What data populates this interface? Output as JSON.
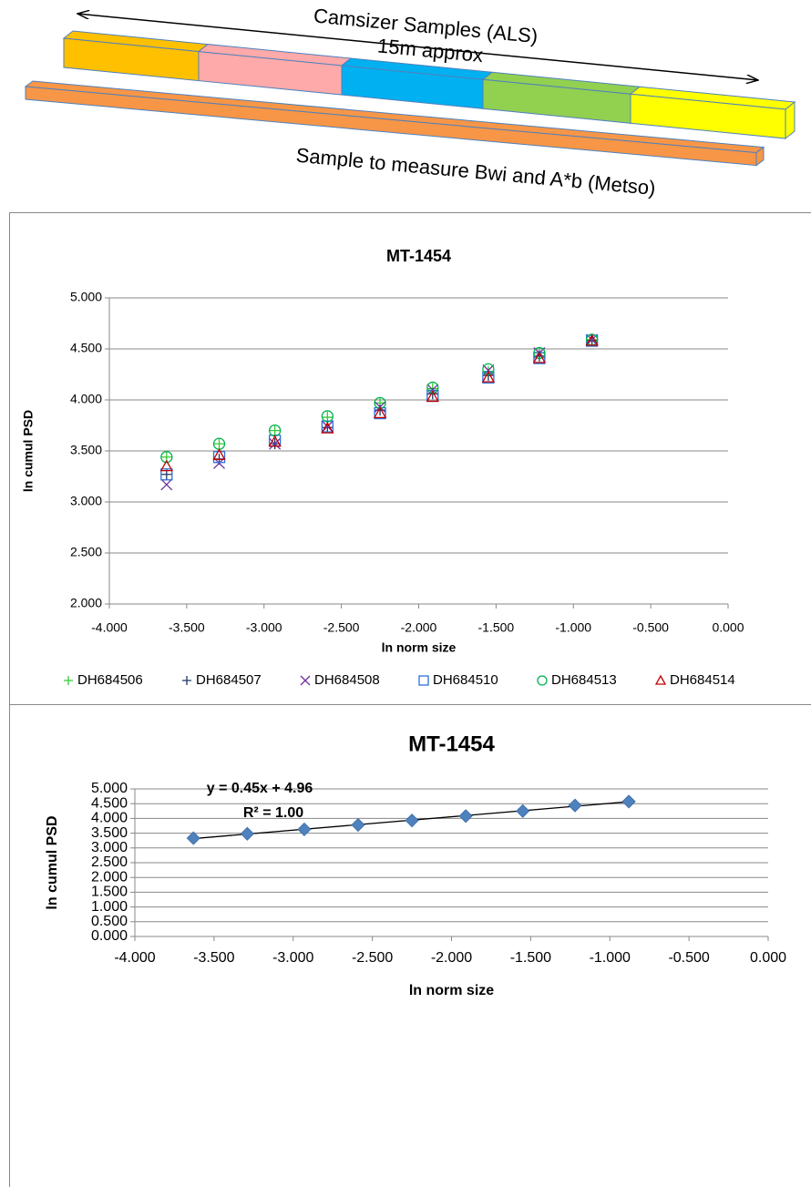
{
  "diagram": {
    "title": "Camsizer Samples (ALS)",
    "length": "15m approx",
    "caption": "Sample to measure Bwi and A*b (Metso)"
  },
  "chart_data": [
    {
      "type": "scatter",
      "title": "MT-1454",
      "x_label": "ln norm size",
      "y_label": "ln cumul PSD",
      "x": [
        -3.63,
        -3.29,
        -2.93,
        -2.59,
        -2.25,
        -1.91,
        -1.55,
        -1.22,
        -0.88
      ],
      "series": [
        {
          "name": "DH684506",
          "color": "#33cc33",
          "marker": "plus",
          "values": [
            3.44,
            3.57,
            3.7,
            3.83,
            3.97,
            4.11,
            4.28,
            4.46,
            4.59
          ]
        },
        {
          "name": "DH684507",
          "color": "#1f3864",
          "marker": "plus",
          "values": [
            3.27,
            3.42,
            3.57,
            3.73,
            3.9,
            4.06,
            4.24,
            4.43,
            4.58
          ]
        },
        {
          "name": "DH684508",
          "color": "#7030a0",
          "marker": "x",
          "values": [
            3.17,
            3.38,
            3.57,
            3.74,
            3.93,
            4.1,
            4.29,
            4.46,
            4.59
          ]
        },
        {
          "name": "DH684510",
          "color": "#2f6fd6",
          "marker": "square",
          "values": [
            3.27,
            3.44,
            3.6,
            3.74,
            3.87,
            4.04,
            4.22,
            4.41,
            4.58
          ]
        },
        {
          "name": "DH684513",
          "color": "#00b050",
          "marker": "circle",
          "values": [
            3.44,
            3.57,
            3.7,
            3.84,
            3.97,
            4.12,
            4.3,
            4.46,
            4.59
          ]
        },
        {
          "name": "DH684514",
          "color": "#c00000",
          "marker": "triangle",
          "values": [
            3.35,
            3.46,
            3.59,
            3.72,
            3.87,
            4.03,
            4.22,
            4.41,
            4.58
          ]
        }
      ],
      "xlim": [
        -4,
        0
      ],
      "xticks": [
        {
          "value": -4,
          "label": "-4.000"
        },
        {
          "value": -3.5,
          "label": "-3.500"
        },
        {
          "value": -3,
          "label": "-3.000"
        },
        {
          "value": -2.5,
          "label": "-2.500"
        },
        {
          "value": -2,
          "label": "-2.000"
        },
        {
          "value": -1.5,
          "label": "-1.500"
        },
        {
          "value": -1,
          "label": "-1.000"
        },
        {
          "value": -0.5,
          "label": "-0.500"
        },
        {
          "value": 0,
          "label": "0.000"
        }
      ],
      "ylim": [
        2,
        5
      ],
      "yticks": [
        {
          "value": 2,
          "label": "2.000"
        },
        {
          "value": 2.5,
          "label": "2.500"
        },
        {
          "value": 3,
          "label": "3.000"
        },
        {
          "value": 3.5,
          "label": "3.500"
        },
        {
          "value": 4,
          "label": "4.000"
        },
        {
          "value": 4.5,
          "label": "4.500"
        },
        {
          "value": 5,
          "label": "5.000"
        }
      ],
      "grid": true,
      "legend": "bottom"
    },
    {
      "type": "scatter",
      "title": "MT-1454",
      "x_label": "ln norm size",
      "y_label": "ln cumul PSD",
      "x": [
        -3.63,
        -3.29,
        -2.93,
        -2.59,
        -2.25,
        -1.91,
        -1.55,
        -1.22,
        -0.88
      ],
      "series": [
        {
          "color": "#4f81bd",
          "marker": "diamond",
          "values": [
            3.33,
            3.48,
            3.63,
            3.78,
            3.93,
            4.08,
            4.25,
            4.44,
            4.57
          ]
        }
      ],
      "annotations": [
        "y = 0.45x + 4.96",
        "R² = 1.00"
      ],
      "trendline": true,
      "xlim": [
        -4,
        0
      ],
      "xticks": [
        {
          "value": -4,
          "label": "-4.000"
        },
        {
          "value": -3.5,
          "label": "-3.500"
        },
        {
          "value": -3,
          "label": "-3.000"
        },
        {
          "value": -2.5,
          "label": "-2.500"
        },
        {
          "value": -2,
          "label": "-2.000"
        },
        {
          "value": -1.5,
          "label": "-1.500"
        },
        {
          "value": -1,
          "label": "-1.000"
        },
        {
          "value": -0.5,
          "label": "-0.500"
        },
        {
          "value": 0,
          "label": "0.000"
        }
      ],
      "ylim": [
        0,
        5
      ],
      "yticks": [
        {
          "value": 0,
          "label": "0.000"
        },
        {
          "value": 0.5,
          "label": "0.500"
        },
        {
          "value": 1,
          "label": "1.000"
        },
        {
          "value": 1.5,
          "label": "1.500"
        },
        {
          "value": 2,
          "label": "2.000"
        },
        {
          "value": 2.5,
          "label": "2.500"
        },
        {
          "value": 3,
          "label": "3.000"
        },
        {
          "value": 3.5,
          "label": "3.500"
        },
        {
          "value": 4,
          "label": "4.000"
        },
        {
          "value": 4.5,
          "label": "4.500"
        },
        {
          "value": 5,
          "label": "5.000"
        }
      ],
      "grid": true
    }
  ]
}
